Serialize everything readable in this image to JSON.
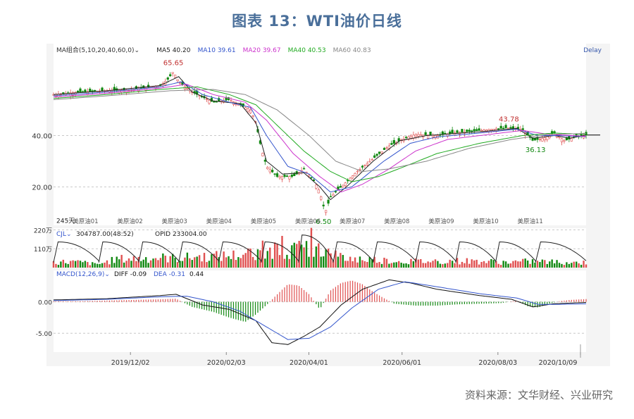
{
  "title": "图表 13：WTI油价日线",
  "source": "资料来源：文华财经、兴业研究",
  "colors": {
    "up": "#e05050",
    "down": "#118811",
    "ma5": "#222222",
    "ma10": "#3355cc",
    "ma20": "#cc33cc",
    "ma40": "#22aa22",
    "ma60": "#888888",
    "grid": "#c8c8c8",
    "axis_text": "#333333"
  },
  "chart_data": {
    "type": "candlestick",
    "price_panel": {
      "header": {
        "group": "MA组合(5,10,20,40,60,0)",
        "ma5": "MA5 40.20",
        "ma10": "MA10 39.61",
        "ma20": "MA20 39.67",
        "ma40": "MA40 40.53",
        "ma60": "MA60 40.83",
        "delay": "Delay"
      },
      "yticks": [
        "40.00",
        "20.00"
      ],
      "ylim": [
        5,
        72
      ],
      "annotations": {
        "high": "65.65",
        "low": "6.50",
        "peak2": "43.78",
        "dip": "36.13",
        "count": "245天"
      },
      "contract_labels": [
        "美原油01",
        "美原油02",
        "美原油03",
        "美原油04",
        "美原油05",
        "美原油06",
        "美原油07",
        "美原油08",
        "美原油09",
        "美原油10",
        "美原油11"
      ],
      "close_path": [
        [
          0,
          56
        ],
        [
          0.05,
          57
        ],
        [
          0.1,
          57.5
        ],
        [
          0.15,
          58
        ],
        [
          0.2,
          59.5
        ],
        [
          0.215,
          62
        ],
        [
          0.225,
          65
        ],
        [
          0.235,
          61
        ],
        [
          0.26,
          57
        ],
        [
          0.28,
          55
        ],
        [
          0.3,
          53
        ],
        [
          0.33,
          54
        ],
        [
          0.35,
          52
        ],
        [
          0.37,
          50
        ],
        [
          0.38,
          45
        ],
        [
          0.39,
          35
        ],
        [
          0.4,
          28
        ],
        [
          0.42,
          24
        ],
        [
          0.45,
          24
        ],
        [
          0.47,
          27
        ],
        [
          0.49,
          22
        ],
        [
          0.5,
          18
        ],
        [
          0.51,
          10
        ],
        [
          0.52,
          16
        ],
        [
          0.54,
          20
        ],
        [
          0.57,
          26
        ],
        [
          0.6,
          31
        ],
        [
          0.63,
          36
        ],
        [
          0.66,
          39
        ],
        [
          0.68,
          40.5
        ],
        [
          0.72,
          40
        ],
        [
          0.75,
          41
        ],
        [
          0.8,
          42
        ],
        [
          0.85,
          43
        ],
        [
          0.88,
          42.5
        ],
        [
          0.9,
          38
        ],
        [
          0.92,
          39
        ],
        [
          0.94,
          41
        ],
        [
          0.96,
          38
        ],
        [
          0.98,
          39.5
        ],
        [
          1.0,
          40.2
        ]
      ],
      "ma_paths": {
        "ma5": [
          [
            0,
            56
          ],
          [
            0.1,
            57.5
          ],
          [
            0.2,
            59.5
          ],
          [
            0.235,
            63
          ],
          [
            0.26,
            57
          ],
          [
            0.3,
            53.5
          ],
          [
            0.35,
            52.5
          ],
          [
            0.38,
            45
          ],
          [
            0.4,
            30
          ],
          [
            0.43,
            25
          ],
          [
            0.47,
            25.5
          ],
          [
            0.5,
            20
          ],
          [
            0.52,
            15
          ],
          [
            0.55,
            20
          ],
          [
            0.6,
            30
          ],
          [
            0.65,
            38
          ],
          [
            0.7,
            40
          ],
          [
            0.8,
            41.5
          ],
          [
            0.87,
            42.8
          ],
          [
            0.9,
            39
          ],
          [
            0.94,
            40
          ],
          [
            0.97,
            39
          ],
          [
            1.0,
            40.2
          ]
        ],
        "ma10": [
          [
            0,
            55.5
          ],
          [
            0.1,
            57
          ],
          [
            0.2,
            59
          ],
          [
            0.24,
            61
          ],
          [
            0.28,
            56
          ],
          [
            0.33,
            53
          ],
          [
            0.37,
            51
          ],
          [
            0.4,
            40
          ],
          [
            0.44,
            28
          ],
          [
            0.48,
            25
          ],
          [
            0.52,
            18
          ],
          [
            0.56,
            20
          ],
          [
            0.62,
            30
          ],
          [
            0.67,
            37
          ],
          [
            0.72,
            39.5
          ],
          [
            0.8,
            41
          ],
          [
            0.87,
            42.5
          ],
          [
            0.91,
            40
          ],
          [
            0.95,
            40
          ],
          [
            1.0,
            39.6
          ]
        ],
        "ma20": [
          [
            0,
            55
          ],
          [
            0.1,
            56.5
          ],
          [
            0.2,
            58.5
          ],
          [
            0.25,
            60
          ],
          [
            0.3,
            56
          ],
          [
            0.36,
            53
          ],
          [
            0.4,
            46
          ],
          [
            0.45,
            33
          ],
          [
            0.5,
            24
          ],
          [
            0.54,
            18
          ],
          [
            0.58,
            21
          ],
          [
            0.63,
            27
          ],
          [
            0.68,
            34
          ],
          [
            0.74,
            38.5
          ],
          [
            0.82,
            40.5
          ],
          [
            0.88,
            42
          ],
          [
            0.93,
            40.5
          ],
          [
            1.0,
            39.7
          ]
        ],
        "ma40": [
          [
            0,
            54.5
          ],
          [
            0.1,
            56
          ],
          [
            0.2,
            58
          ],
          [
            0.27,
            59
          ],
          [
            0.33,
            56
          ],
          [
            0.38,
            52
          ],
          [
            0.42,
            44
          ],
          [
            0.47,
            34
          ],
          [
            0.52,
            26
          ],
          [
            0.56,
            22
          ],
          [
            0.61,
            24
          ],
          [
            0.66,
            28
          ],
          [
            0.72,
            33
          ],
          [
            0.8,
            37
          ],
          [
            0.88,
            40
          ],
          [
            0.94,
            41
          ],
          [
            1.0,
            40.5
          ]
        ],
        "ma60": [
          [
            0,
            54
          ],
          [
            0.1,
            55.5
          ],
          [
            0.22,
            57.5
          ],
          [
            0.3,
            58
          ],
          [
            0.36,
            56
          ],
          [
            0.42,
            50
          ],
          [
            0.48,
            40
          ],
          [
            0.53,
            30
          ],
          [
            0.58,
            26
          ],
          [
            0.63,
            27
          ],
          [
            0.7,
            30
          ],
          [
            0.78,
            35
          ],
          [
            0.86,
            38.5
          ],
          [
            0.93,
            40.5
          ],
          [
            1.0,
            40.8
          ]
        ]
      }
    },
    "volume_panel": {
      "header": {
        "name": "CJL",
        "value": "304787.00(48:52)",
        "opid": "OPID 233004.00"
      },
      "yticks": [
        "220万",
        "110万"
      ],
      "ylim": [
        0,
        230
      ],
      "rolls": [
        0.0,
        0.085,
        0.16,
        0.235,
        0.31,
        0.39,
        0.46,
        0.525,
        0.6,
        0.68,
        0.755,
        0.83,
        0.905
      ],
      "volume_envelope": [
        [
          0,
          60
        ],
        [
          0.03,
          65
        ],
        [
          0.06,
          55
        ],
        [
          0.08,
          35
        ],
        [
          0.085,
          40
        ],
        [
          0.12,
          95
        ],
        [
          0.16,
          100
        ],
        [
          0.2,
          110
        ],
        [
          0.235,
          105
        ],
        [
          0.27,
          120
        ],
        [
          0.31,
          125
        ],
        [
          0.35,
          140
        ],
        [
          0.38,
          170
        ],
        [
          0.39,
          180
        ],
        [
          0.43,
          190
        ],
        [
          0.46,
          200
        ],
        [
          0.49,
          220
        ],
        [
          0.52,
          150
        ],
        [
          0.55,
          100
        ],
        [
          0.6,
          90
        ],
        [
          0.65,
          70
        ],
        [
          0.7,
          70
        ],
        [
          0.75,
          75
        ],
        [
          0.8,
          70
        ],
        [
          0.85,
          60
        ],
        [
          0.9,
          70
        ],
        [
          0.95,
          60
        ],
        [
          1.0,
          55
        ]
      ]
    },
    "macd_panel": {
      "header": {
        "name": "MACD(12,26,9)",
        "diff": "DIFF -0.09",
        "dea": "DEA -0.31",
        "macd": "0.44"
      },
      "yticks": [
        "0.00",
        "-5.00"
      ],
      "ylim": [
        -8,
        5
      ],
      "diff_path": [
        [
          0,
          0.3
        ],
        [
          0.1,
          0.5
        ],
        [
          0.2,
          1.0
        ],
        [
          0.23,
          1.2
        ],
        [
          0.28,
          -0.5
        ],
        [
          0.33,
          -1.2
        ],
        [
          0.38,
          -3
        ],
        [
          0.41,
          -6.5
        ],
        [
          0.44,
          -6.8
        ],
        [
          0.47,
          -5.5
        ],
        [
          0.5,
          -4
        ],
        [
          0.54,
          -0.5
        ],
        [
          0.58,
          2
        ],
        [
          0.63,
          3.5
        ],
        [
          0.67,
          3
        ],
        [
          0.72,
          2
        ],
        [
          0.8,
          1
        ],
        [
          0.86,
          0.4
        ],
        [
          0.9,
          -0.8
        ],
        [
          0.94,
          -0.3
        ],
        [
          1.0,
          -0.09
        ]
      ],
      "dea_path": [
        [
          0,
          0.2
        ],
        [
          0.1,
          0.4
        ],
        [
          0.2,
          0.8
        ],
        [
          0.25,
          0.9
        ],
        [
          0.3,
          0
        ],
        [
          0.35,
          -1.5
        ],
        [
          0.4,
          -4
        ],
        [
          0.44,
          -6
        ],
        [
          0.48,
          -5.8
        ],
        [
          0.52,
          -4
        ],
        [
          0.56,
          -1
        ],
        [
          0.61,
          2
        ],
        [
          0.66,
          3.2
        ],
        [
          0.72,
          2.4
        ],
        [
          0.8,
          1.3
        ],
        [
          0.87,
          0.6
        ],
        [
          0.91,
          -0.4
        ],
        [
          0.95,
          -0.4
        ],
        [
          1.0,
          -0.31
        ]
      ],
      "hist": [
        [
          0,
          0.1
        ],
        [
          0.05,
          0.1
        ],
        [
          0.1,
          0.2
        ],
        [
          0.15,
          0.3
        ],
        [
          0.2,
          0.4
        ],
        [
          0.23,
          0.5
        ],
        [
          0.26,
          -0.8
        ],
        [
          0.3,
          -1.6
        ],
        [
          0.33,
          -2.5
        ],
        [
          0.36,
          -3.2
        ],
        [
          0.38,
          -2
        ],
        [
          0.4,
          -0.5
        ],
        [
          0.42,
          1.2
        ],
        [
          0.44,
          2.8
        ],
        [
          0.46,
          2.6
        ],
        [
          0.48,
          1.2
        ],
        [
          0.5,
          -1.2
        ],
        [
          0.52,
          1.8
        ],
        [
          0.54,
          3
        ],
        [
          0.56,
          3.4
        ],
        [
          0.58,
          2.8
        ],
        [
          0.6,
          1.6
        ],
        [
          0.62,
          0.6
        ],
        [
          0.64,
          -0.3
        ],
        [
          0.68,
          -0.6
        ],
        [
          0.72,
          -0.6
        ],
        [
          0.76,
          -0.4
        ],
        [
          0.8,
          -0.3
        ],
        [
          0.84,
          -0.2
        ],
        [
          0.87,
          0.2
        ],
        [
          0.89,
          -0.7
        ],
        [
          0.91,
          -0.9
        ],
        [
          0.93,
          -0.3
        ],
        [
          0.95,
          0.1
        ],
        [
          0.97,
          0.3
        ],
        [
          1.0,
          0.44
        ]
      ]
    },
    "xticks": [
      "2019/12/02",
      "2020/02/03",
      "2020/04/01",
      "2020/06/01",
      "2020/08/03",
      "2020/10/09"
    ],
    "xtick_positions": [
      0.155,
      0.335,
      0.49,
      0.665,
      0.845,
      1.0
    ]
  }
}
